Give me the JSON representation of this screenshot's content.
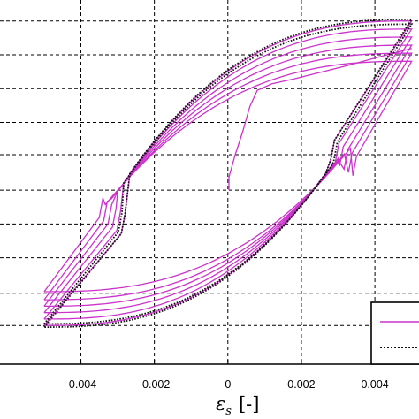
{
  "chart_data": {
    "type": "line",
    "title": "",
    "xlabel_symbol": "ε",
    "xlabel_subscript": "s",
    "xlabel_unit": "[-]",
    "ylabel": "",
    "xlim": [
      -0.0062,
      0.0052
    ],
    "ylim": [
      -1.08,
      1.18
    ],
    "grid": true,
    "legend_placement": "bottom-right",
    "x_ticks": [
      -0.004,
      -0.002,
      0,
      0.002,
      0.004
    ],
    "x_tick_labels": [
      "-0.004",
      "-0.002",
      "0",
      "0.002",
      "0.004"
    ],
    "y_grid_values": [
      -0.84,
      -0.64,
      -0.42,
      -0.21,
      0.0,
      0.22,
      0.42,
      0.63,
      0.84,
      1.05
    ],
    "series": [
      {
        "color": "#cc33cc",
        "style": "solid",
        "initial_loading": {
          "x": [
            3e-05,
            3e-05,
            0.0002,
            0.0004,
            0.0006,
            0.0008,
            0.0012,
            0.0018,
            0.0025,
            0.0032,
            0.004,
            0.005
          ],
          "y": [
            0.0,
            0.08,
            0.22,
            0.36,
            0.52,
            0.62,
            0.66,
            0.69,
            0.73,
            0.77,
            0.82,
            0.88
          ]
        },
        "loops": [
          {
            "top": 1.05,
            "bottom": -0.84,
            "knee_right": 0.31,
            "knee_left": 0.27,
            "offset": 0.0
          },
          {
            "top": 1.0,
            "bottom": -0.8,
            "knee_right": 0.29,
            "knee_left": 0.25,
            "offset": 0.00012
          },
          {
            "top": 0.95,
            "bottom": -0.76,
            "knee_right": 0.27,
            "knee_left": 0.23,
            "offset": 0.00024
          },
          {
            "top": 0.9,
            "bottom": -0.72,
            "knee_right": 0.25,
            "knee_left": 0.21,
            "offset": 0.00036
          },
          {
            "top": 0.85,
            "bottom": -0.68,
            "knee_right": 0.23,
            "knee_left": 0.19,
            "offset": 0.00048
          },
          {
            "top": 0.8,
            "bottom": -0.63,
            "knee_right": 0.21,
            "knee_left": 0.17,
            "offset": 0.0006
          }
        ]
      },
      {
        "color": "#111111",
        "style": "dotted",
        "loops": [
          {
            "top": 1.06,
            "bottom": -0.85,
            "knee_right": 0.31,
            "knee_left": 0.27,
            "offset": 0.0
          },
          {
            "top": 1.03,
            "bottom": -0.83,
            "knee_right": 0.3,
            "knee_left": 0.26,
            "offset": 8e-05
          }
        ]
      }
    ],
    "legend": [
      {
        "color": "#cc33cc",
        "style": "solid",
        "label": ""
      },
      {
        "color": "#111111",
        "style": "dotted",
        "label": ""
      }
    ]
  }
}
